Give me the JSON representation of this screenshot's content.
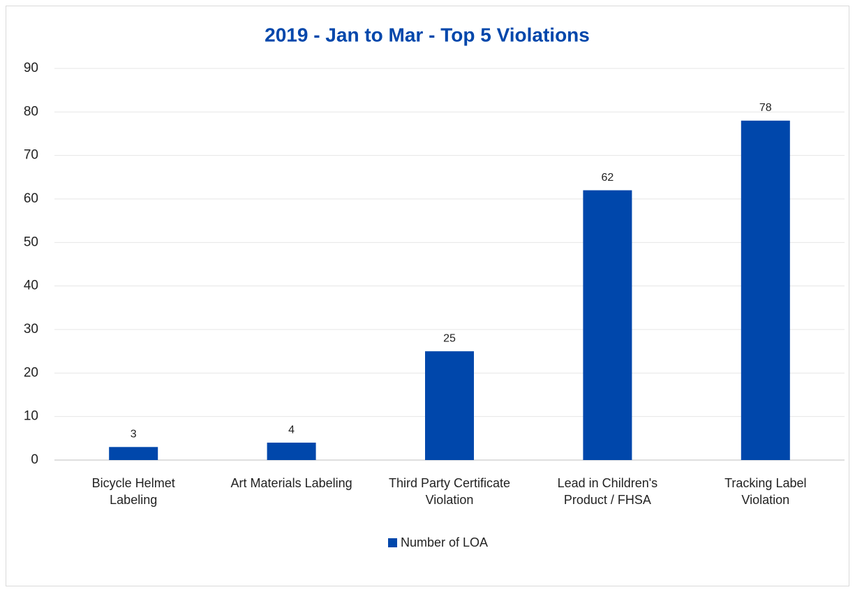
{
  "chart_data": {
    "type": "bar",
    "title": "2019 - Jan to Mar - Top 5 Violations",
    "categories": [
      "Bicycle Helmet Labeling",
      "Art Materials Labeling",
      "Third Party Certificate Violation",
      "Lead in Children's Product / FHSA",
      "Tracking Label Violation"
    ],
    "series": [
      {
        "name": "Number of LOA",
        "color": "#0047ab",
        "values": [
          3,
          4,
          25,
          62,
          78
        ]
      }
    ],
    "ylim": [
      0,
      90
    ],
    "yticks": [
      0,
      10,
      20,
      30,
      40,
      50,
      60,
      70,
      80,
      90
    ],
    "grid": true,
    "legend": "bottom"
  }
}
